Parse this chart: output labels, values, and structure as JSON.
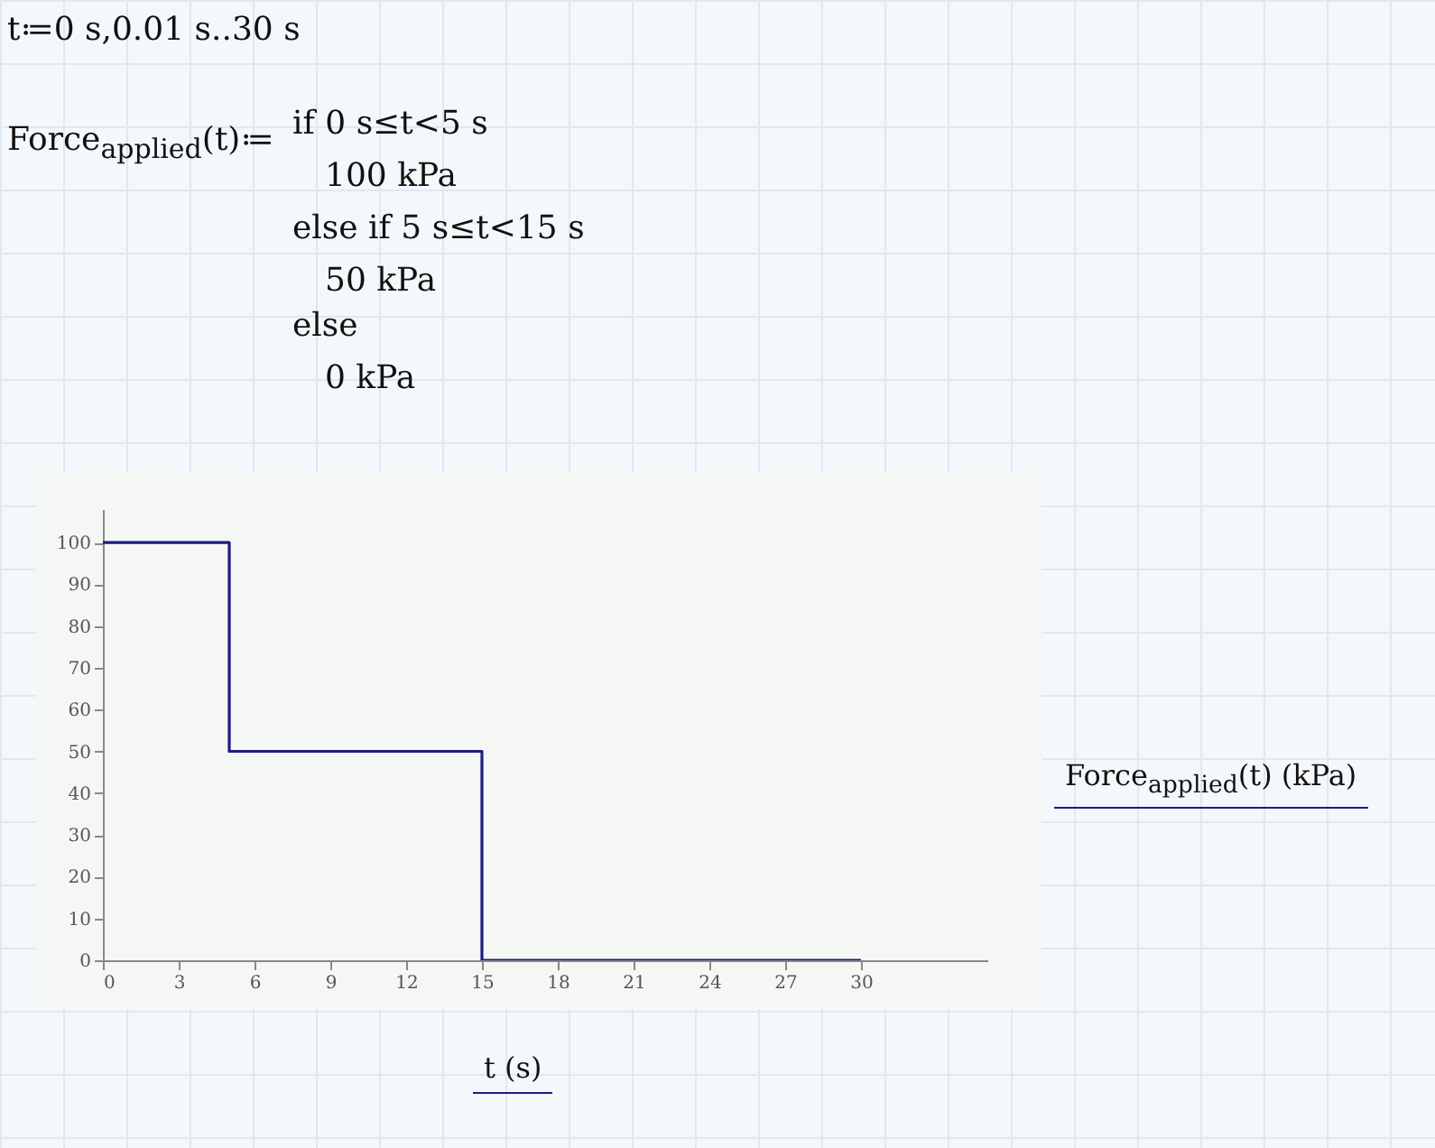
{
  "chart_data": {
    "type": "step",
    "xlabel": "t (s)",
    "ylabel": "Force$_{applied}$(t) (kPa)",
    "x": [
      0,
      5,
      15,
      30
    ],
    "series": [
      {
        "color": "#1c1c84",
        "values": [
          100,
          50,
          0,
          0
        ]
      }
    ],
    "xlim": [
      0,
      35
    ],
    "ylim": [
      0,
      108
    ],
    "xticks": [
      0,
      3,
      6,
      9,
      12,
      15,
      18,
      21,
      24,
      27,
      30
    ],
    "yticks": [
      0,
      10,
      20,
      30,
      40,
      50,
      60,
      70,
      80,
      90,
      100
    ],
    "grid": false,
    "annotations": [
      "t≔0 s,0.01 s..30 s",
      "Force$_{applied}$(t)≔",
      "if 0 s≤t<5 s",
      "100 kPa",
      "else if 5 s≤t<15 s",
      "50 kPa",
      "else",
      "0 kPa"
    ]
  }
}
